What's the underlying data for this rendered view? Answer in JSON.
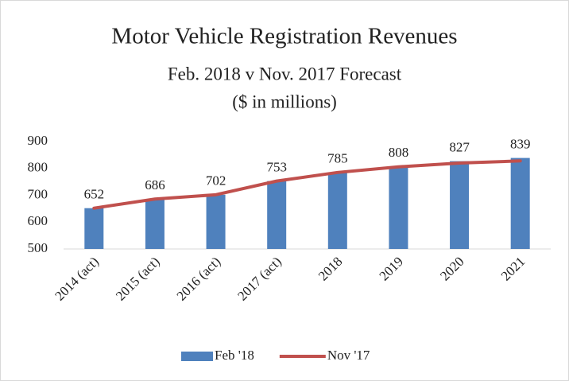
{
  "chart_data": {
    "type": "bar",
    "title": "Motor Vehicle Registration Revenues",
    "subtitle": [
      "Feb. 2018 v Nov. 2017 Forecast",
      "($ in millions)"
    ],
    "categories": [
      "2014 (act)",
      "2015 (act)",
      "2016 (act)",
      "2017 (act)",
      "2018",
      "2019",
      "2020",
      "2021"
    ],
    "series": [
      {
        "name": "Feb '18",
        "type": "bar",
        "color": "#4f81bd",
        "values": [
          652,
          686,
          702,
          753,
          785,
          808,
          827,
          839
        ]
      },
      {
        "name": "Nov '17",
        "type": "line",
        "color": "#c0504d",
        "values": [
          652,
          686,
          702,
          753,
          785,
          806,
          820,
          828
        ]
      }
    ],
    "data_labels_series": 0,
    "ylim": [
      500,
      900
    ],
    "yticks": [
      500,
      600,
      700,
      800,
      900
    ],
    "grid": false,
    "legend": "bottom"
  }
}
